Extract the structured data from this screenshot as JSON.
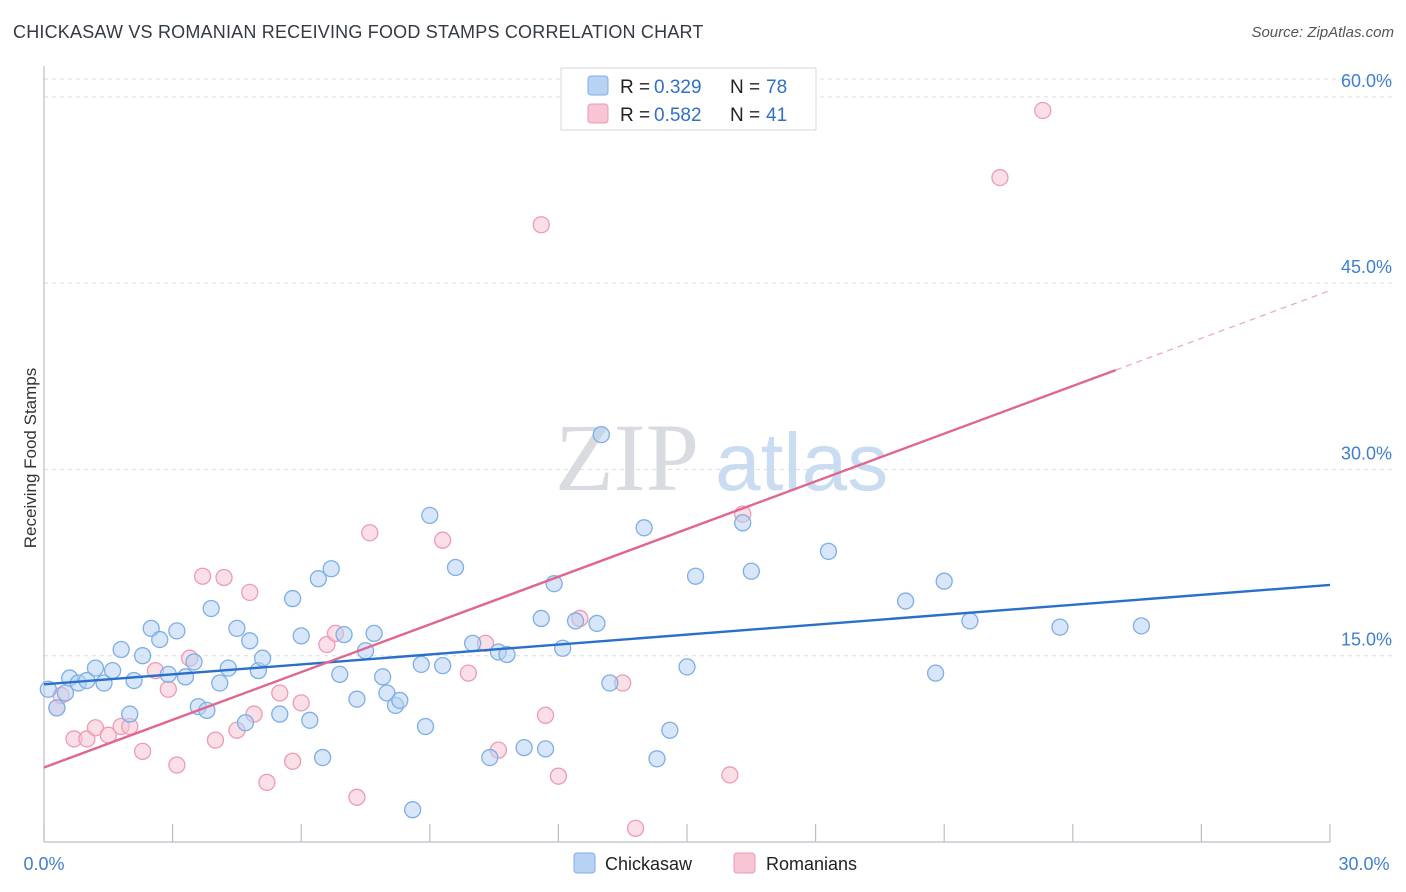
{
  "title": "CHICKASAW VS ROMANIAN RECEIVING FOOD STAMPS CORRELATION CHART",
  "source": "Source: ZipAtlas.com",
  "watermark": {
    "part1": "ZIP",
    "part2": "atlas"
  },
  "colors": {
    "chickasaw_fill": "#b7d2f3",
    "chickasaw_stroke": "#7eaee6",
    "chickasaw_line": "#2a6fcb",
    "romanian_fill": "#f7c5d4",
    "romanian_stroke": "#ee9ab5",
    "romanian_line": "#e0668f",
    "tick_label": "#3f7fd0",
    "grid": "#d9dde3"
  },
  "legend": {
    "rows": [
      {
        "r_label": "R = ",
        "r_value": "0.329",
        "n_label": "N = ",
        "n_value": "78"
      },
      {
        "r_label": "R = ",
        "r_value": "0.582",
        "n_label": "N = ",
        "n_value": "41"
      }
    ]
  },
  "chart_data": {
    "type": "scatter",
    "title": "CHICKASAW VS ROMANIAN RECEIVING FOOD STAMPS CORRELATION CHART",
    "xlabel": "",
    "ylabel": "Receiving Food Stamps",
    "xlim": [
      0,
      30
    ],
    "ylim": [
      0,
      62
    ],
    "x_tick_labels": [
      "0.0%",
      "30.0%"
    ],
    "y_ticks": [
      15,
      30,
      45,
      60
    ],
    "y_tick_labels": [
      "15.0%",
      "30.0%",
      "45.0%",
      "60.0%"
    ],
    "grid": true,
    "legend_position": "top-center",
    "series": [
      {
        "name": "Chickasaw",
        "r": 0.329,
        "n": 78,
        "trend": {
          "x0": 0,
          "y0": 12.7,
          "x1": 30,
          "y1": 20.7,
          "dashed_to": 30
        },
        "points": [
          [
            0.1,
            12.3
          ],
          [
            0.3,
            10.8
          ],
          [
            0.5,
            12.0
          ],
          [
            0.6,
            13.2
          ],
          [
            0.8,
            12.8
          ],
          [
            1.0,
            13.0
          ],
          [
            1.2,
            14.0
          ],
          [
            1.4,
            12.8
          ],
          [
            1.6,
            13.8
          ],
          [
            1.8,
            15.5
          ],
          [
            2.0,
            10.3
          ],
          [
            2.1,
            13.0
          ],
          [
            2.3,
            15.0
          ],
          [
            2.5,
            17.2
          ],
          [
            2.7,
            16.3
          ],
          [
            2.9,
            13.5
          ],
          [
            3.1,
            17.0
          ],
          [
            3.3,
            13.3
          ],
          [
            3.5,
            14.5
          ],
          [
            3.6,
            10.9
          ],
          [
            3.8,
            10.6
          ],
          [
            3.9,
            18.8
          ],
          [
            4.1,
            12.8
          ],
          [
            4.3,
            14.0
          ],
          [
            4.5,
            17.2
          ],
          [
            4.7,
            9.6
          ],
          [
            4.8,
            16.2
          ],
          [
            5.0,
            13.8
          ],
          [
            5.1,
            14.8
          ],
          [
            5.5,
            10.3
          ],
          [
            5.8,
            19.6
          ],
          [
            6.0,
            16.6
          ],
          [
            6.2,
            9.8
          ],
          [
            6.4,
            21.2
          ],
          [
            6.5,
            6.8
          ],
          [
            6.7,
            22.0
          ],
          [
            6.9,
            13.5
          ],
          [
            7.0,
            16.7
          ],
          [
            7.3,
            11.5
          ],
          [
            7.5,
            15.4
          ],
          [
            7.7,
            16.8
          ],
          [
            7.9,
            13.3
          ],
          [
            8.0,
            12.0
          ],
          [
            8.2,
            11.0
          ],
          [
            8.3,
            11.4
          ],
          [
            8.8,
            14.3
          ],
          [
            8.9,
            9.3
          ],
          [
            9.0,
            26.3
          ],
          [
            9.3,
            14.2
          ],
          [
            9.6,
            22.1
          ],
          [
            10.0,
            16.0
          ],
          [
            10.4,
            6.8
          ],
          [
            10.6,
            15.3
          ],
          [
            10.8,
            15.1
          ],
          [
            11.2,
            7.6
          ],
          [
            11.6,
            18.0
          ],
          [
            11.7,
            7.5
          ],
          [
            11.9,
            20.8
          ],
          [
            12.1,
            15.6
          ],
          [
            12.4,
            17.8
          ],
          [
            12.9,
            17.6
          ],
          [
            13.0,
            32.8
          ],
          [
            13.2,
            12.8
          ],
          [
            14.0,
            25.3
          ],
          [
            14.3,
            6.7
          ],
          [
            14.6,
            9.0
          ],
          [
            15.0,
            14.1
          ],
          [
            15.2,
            21.4
          ],
          [
            16.3,
            25.7
          ],
          [
            16.5,
            21.8
          ],
          [
            18.3,
            23.4
          ],
          [
            20.1,
            19.4
          ],
          [
            20.8,
            13.6
          ],
          [
            21.0,
            21.0
          ],
          [
            21.6,
            17.8
          ],
          [
            23.7,
            17.3
          ],
          [
            25.6,
            17.4
          ],
          [
            8.6,
            2.6
          ]
        ]
      },
      {
        "name": "Romanians",
        "r": 0.582,
        "n": 41,
        "trend": {
          "x0": 0,
          "y0": 6.0,
          "x1": 25.0,
          "y1": 38.0,
          "dashed_to": 30
        },
        "points": [
          [
            0.3,
            10.8
          ],
          [
            0.4,
            11.8
          ],
          [
            0.7,
            8.3
          ],
          [
            1.0,
            8.3
          ],
          [
            1.2,
            9.2
          ],
          [
            1.5,
            8.6
          ],
          [
            1.8,
            9.3
          ],
          [
            2.0,
            9.3
          ],
          [
            2.3,
            7.3
          ],
          [
            2.6,
            13.8
          ],
          [
            2.9,
            12.3
          ],
          [
            3.1,
            6.2
          ],
          [
            3.4,
            14.8
          ],
          [
            3.7,
            21.4
          ],
          [
            4.0,
            8.2
          ],
          [
            4.2,
            21.3
          ],
          [
            4.5,
            9.0
          ],
          [
            4.8,
            20.1
          ],
          [
            4.9,
            10.3
          ],
          [
            5.2,
            4.8
          ],
          [
            5.5,
            12.0
          ],
          [
            5.8,
            6.5
          ],
          [
            6.0,
            11.2
          ],
          [
            6.6,
            15.9
          ],
          [
            6.8,
            16.8
          ],
          [
            7.3,
            3.6
          ],
          [
            7.6,
            24.9
          ],
          [
            9.3,
            24.3
          ],
          [
            9.9,
            13.6
          ],
          [
            10.3,
            16.0
          ],
          [
            10.6,
            7.4
          ],
          [
            11.7,
            10.2
          ],
          [
            11.6,
            49.7
          ],
          [
            12.0,
            5.3
          ],
          [
            12.5,
            18.0
          ],
          [
            13.5,
            12.8
          ],
          [
            13.8,
            1.1
          ],
          [
            16.0,
            5.4
          ],
          [
            16.3,
            26.4
          ],
          [
            22.3,
            53.5
          ],
          [
            23.3,
            58.9
          ]
        ]
      }
    ]
  },
  "bottom_legend": {
    "items": [
      "Chickasaw",
      "Romanians"
    ]
  }
}
